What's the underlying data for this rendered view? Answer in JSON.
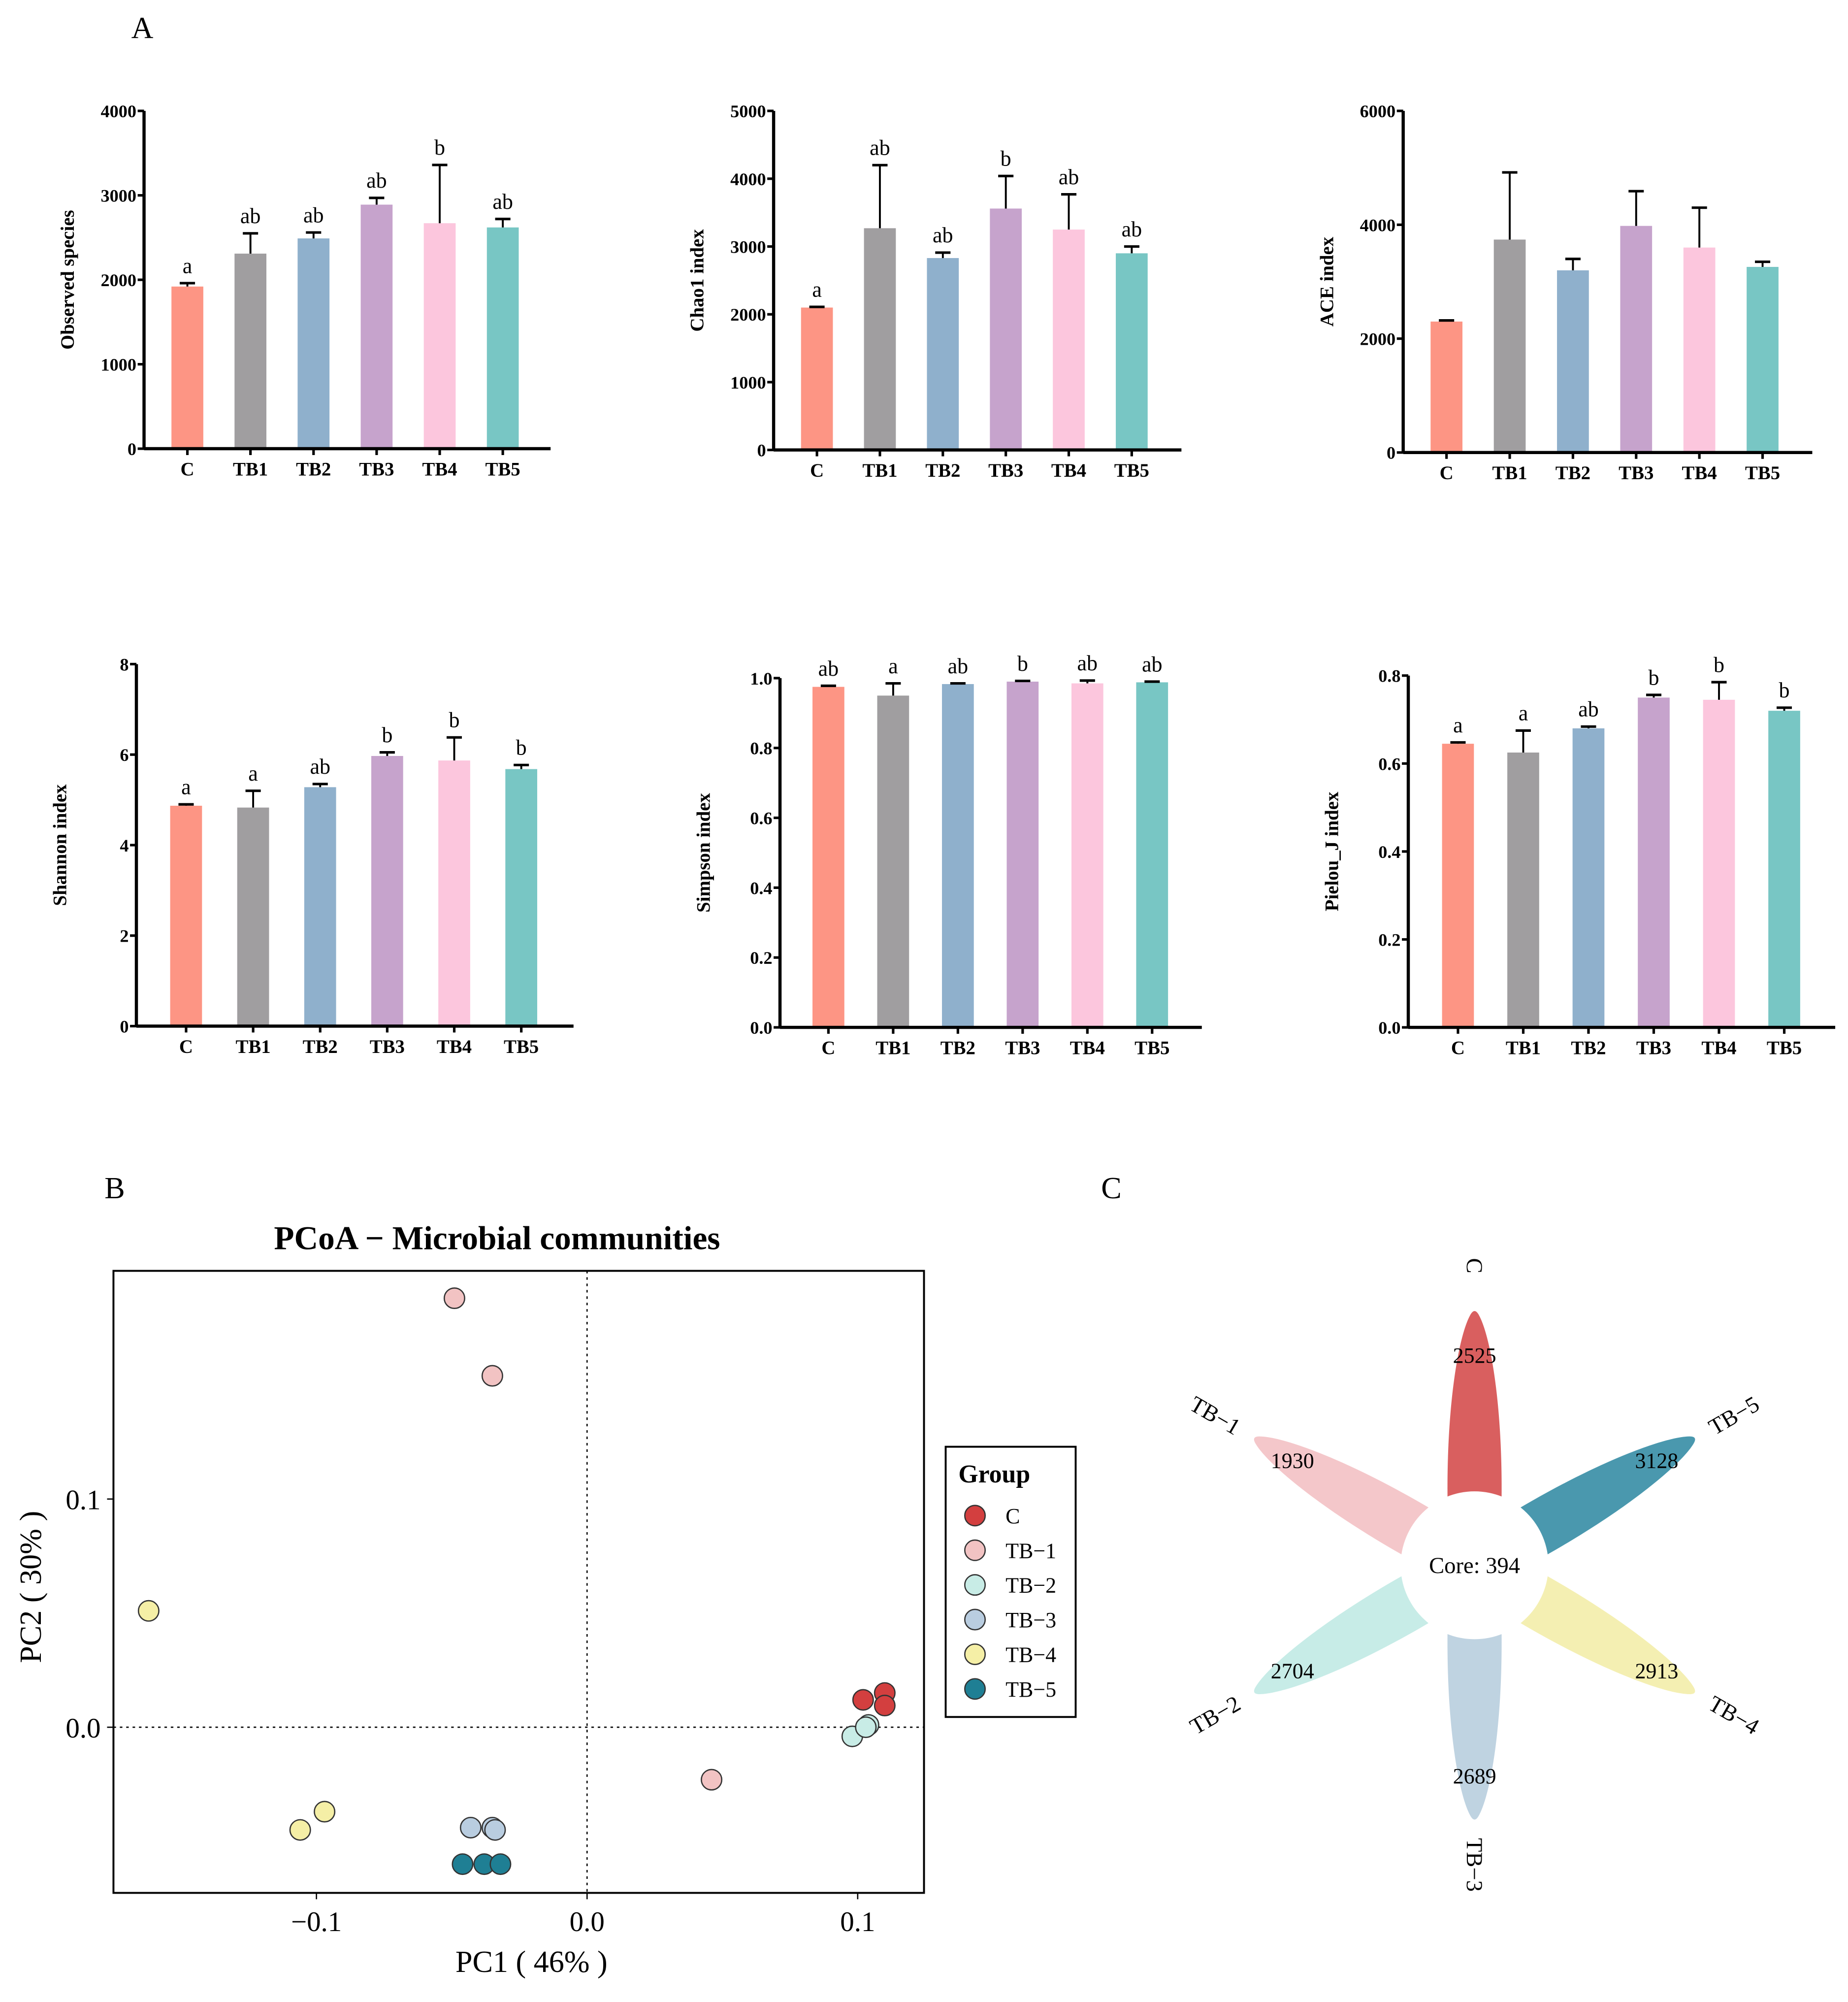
{
  "panels": {
    "a": "A",
    "b": "B",
    "c": "C"
  },
  "bar_colors": [
    "#fd9584",
    "#a09ea0",
    "#8fb0cc",
    "#c6a3cc",
    "#fcc6dd",
    "#78c6c4"
  ],
  "chart_data": [
    {
      "type": "bar",
      "ylabel": "Observed species",
      "categories": [
        "C",
        "TB1",
        "TB2",
        "TB3",
        "TB4",
        "TB5"
      ],
      "values": [
        1920,
        2310,
        2490,
        2890,
        2670,
        2620
      ],
      "error_upper": [
        1960,
        2550,
        2560,
        2970,
        3360,
        2720
      ],
      "letters": [
        "a",
        "ab",
        "ab",
        "ab",
        "b",
        "ab"
      ],
      "ylim": [
        0,
        4000
      ],
      "yticks": [
        "0",
        "1000",
        "2000",
        "3000",
        "4000"
      ]
    },
    {
      "type": "bar",
      "ylabel": "Chao1 index",
      "categories": [
        "C",
        "TB1",
        "TB2",
        "TB3",
        "TB4",
        "TB5"
      ],
      "values": [
        2100,
        3270,
        2830,
        3560,
        3250,
        2900
      ],
      "error_upper": [
        2110,
        4200,
        2910,
        4040,
        3770,
        3000
      ],
      "letters": [
        "a",
        "ab",
        "ab",
        "b",
        "ab",
        "ab"
      ],
      "ylim": [
        0,
        5000
      ],
      "yticks": [
        "0",
        "1000",
        "2000",
        "3000",
        "4000",
        "5000"
      ]
    },
    {
      "type": "bar",
      "ylabel": "ACE index",
      "categories": [
        "C",
        "TB1",
        "TB2",
        "TB3",
        "TB4",
        "TB5"
      ],
      "values": [
        2300,
        3740,
        3200,
        3980,
        3600,
        3260
      ],
      "error_upper": [
        2320,
        4920,
        3400,
        4590,
        4300,
        3350
      ],
      "letters": [],
      "ylim": [
        0,
        6000
      ],
      "yticks": [
        "0",
        "2000",
        "4000",
        "6000"
      ]
    },
    {
      "type": "bar",
      "ylabel": "Shannon index",
      "categories": [
        "C",
        "TB1",
        "TB2",
        "TB3",
        "TB4",
        "TB5"
      ],
      "values": [
        4.87,
        4.83,
        5.28,
        5.97,
        5.87,
        5.68
      ],
      "error_upper": [
        4.9,
        5.2,
        5.35,
        6.05,
        6.38,
        5.77
      ],
      "letters": [
        "a",
        "a",
        "ab",
        "b",
        "b",
        "b"
      ],
      "ylim": [
        0,
        8
      ],
      "yticks": [
        "0",
        "2",
        "4",
        "6",
        "8"
      ]
    },
    {
      "type": "bar",
      "ylabel": "Simpson index",
      "categories": [
        "C",
        "TB1",
        "TB2",
        "TB3",
        "TB4",
        "TB5"
      ],
      "values": [
        0.975,
        0.95,
        0.983,
        0.99,
        0.985,
        0.988
      ],
      "error_upper": [
        0.978,
        0.985,
        0.985,
        0.992,
        0.993,
        0.99
      ],
      "letters": [
        "ab",
        "a",
        "ab",
        "b",
        "ab",
        "ab"
      ],
      "ylim": [
        0,
        1.0
      ],
      "yticks": [
        "0.0",
        "0.2",
        "0.4",
        "0.6",
        "0.8",
        "1.0"
      ]
    },
    {
      "type": "bar",
      "ylabel": "Pielou_J index",
      "categories": [
        "C",
        "TB1",
        "TB2",
        "TB3",
        "TB4",
        "TB5"
      ],
      "values": [
        0.645,
        0.625,
        0.68,
        0.75,
        0.745,
        0.72
      ],
      "error_upper": [
        0.648,
        0.675,
        0.684,
        0.756,
        0.785,
        0.727
      ],
      "letters": [
        "a",
        "a",
        "ab",
        "b",
        "b",
        "b"
      ],
      "ylim": [
        0,
        0.8
      ],
      "yticks": [
        "0.0",
        "0.2",
        "0.4",
        "0.6",
        "0.8"
      ]
    },
    {
      "type": "scatter",
      "title": "PCoA − Microbial communities",
      "xlabel": "PC1 ( 46% )",
      "ylabel": "PC2 ( 30% )",
      "xlim": [
        -0.175,
        0.1245
      ],
      "ylim": [
        -0.0726,
        0.2
      ],
      "xticks": [
        "-0.1",
        "0.0",
        "0.1"
      ],
      "xtick_text": [
        "−0.1",
        "0.0",
        "0.1"
      ],
      "yticks": [
        "0.0",
        "0.1"
      ],
      "reference_lines": "dotted at x=0 and y=0",
      "legend": {
        "title": "Group",
        "placement": "right"
      },
      "series": [
        {
          "name": "C",
          "color": "#d33f3f",
          "points": [
            [
              0.102,
              0.012
            ],
            [
              0.11,
              0.015
            ],
            [
              0.11,
              0.0095
            ]
          ]
        },
        {
          "name": "TB−1",
          "color": "#f2c3c3",
          "points": [
            [
              -0.049,
              0.188
            ],
            [
              -0.035,
              0.154
            ],
            [
              0.046,
              -0.023
            ]
          ]
        },
        {
          "name": "TB−2",
          "color": "#c8ece6",
          "points": [
            [
              0.098,
              -0.004
            ],
            [
              0.104,
              0.001
            ],
            [
              0.103,
              0.0
            ]
          ]
        },
        {
          "name": "TB−3",
          "color": "#b9cde0",
          "points": [
            [
              -0.043,
              -0.044
            ],
            [
              -0.035,
              -0.044
            ],
            [
              -0.034,
              -0.045
            ]
          ]
        },
        {
          "name": "TB−4",
          "color": "#f5efa6",
          "points": [
            [
              -0.162,
              0.051
            ],
            [
              -0.106,
              -0.045
            ],
            [
              -0.097,
              -0.037
            ]
          ]
        },
        {
          "name": "TB−5",
          "color": "#1f7f94",
          "points": [
            [
              -0.046,
              -0.06
            ],
            [
              -0.038,
              -0.06
            ],
            [
              -0.032,
              -0.06
            ]
          ]
        }
      ]
    },
    {
      "type": "flower",
      "core_label": "Core: 394",
      "petals": [
        {
          "name": "C",
          "value": "2525",
          "color": "#d95f5f"
        },
        {
          "name": "TB−5",
          "value": "3128",
          "color": "#4a98ae"
        },
        {
          "name": "TB−4",
          "value": "2913",
          "color": "#f4efb2"
        },
        {
          "name": "TB−3",
          "value": "2689",
          "color": "#bfd3e1"
        },
        {
          "name": "TB−2",
          "value": "2704",
          "color": "#c7ece7"
        },
        {
          "name": "TB−1",
          "value": "1930",
          "color": "#f4c7ca"
        }
      ]
    }
  ]
}
